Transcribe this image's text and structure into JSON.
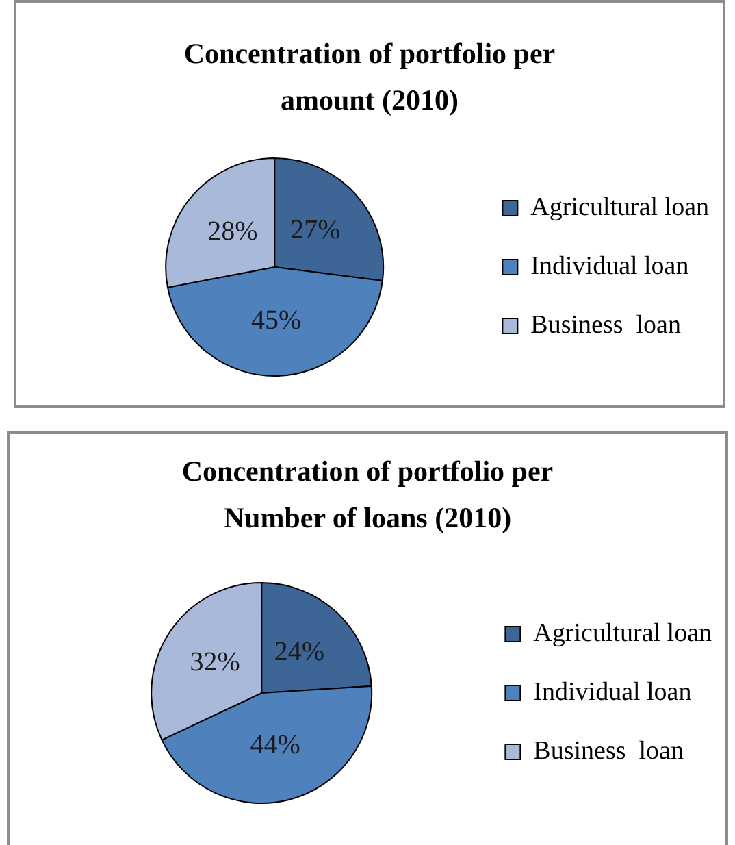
{
  "chart_data": [
    {
      "type": "pie",
      "title": "Concentration of portfolio per amount (2010)",
      "categories": [
        "Agricultural loan",
        "Individual loan",
        "Business  loan"
      ],
      "values": [
        27,
        45,
        28
      ],
      "colors": [
        "#3d6596",
        "#4f81bd",
        "#a9b9d9"
      ],
      "value_labels": [
        "27%",
        "45%",
        "28%"
      ],
      "legend": "right"
    },
    {
      "type": "pie",
      "title": "Concentration of portfolio per Number of loans (2010)",
      "categories": [
        "Agricultural loan",
        "Individual loan",
        "Business  loan"
      ],
      "values": [
        24,
        44,
        32
      ],
      "colors": [
        "#3d6596",
        "#4f81bd",
        "#a9b9d9"
      ],
      "value_labels": [
        "24%",
        "44%",
        "32%"
      ],
      "legend": "right"
    }
  ]
}
